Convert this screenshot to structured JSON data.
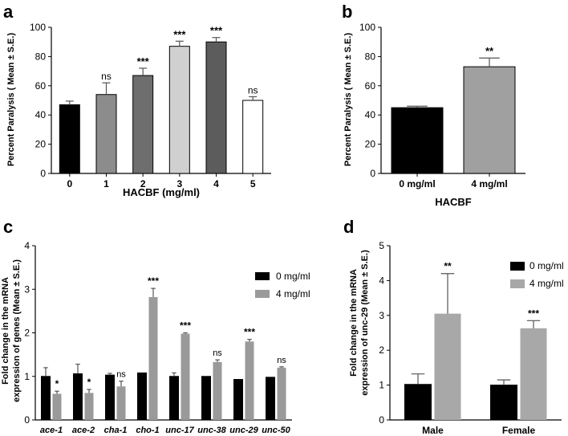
{
  "chart_data": [
    {
      "panel": "a",
      "type": "bar",
      "categories": [
        "0",
        "1",
        "2",
        "3",
        "4",
        "5"
      ],
      "values": [
        47,
        54,
        67,
        87,
        90,
        50
      ],
      "errors": [
        2.5,
        8,
        5,
        3.5,
        3,
        2.5
      ],
      "significance": [
        "",
        "ns",
        "***",
        "***",
        "***",
        "ns"
      ],
      "colors": [
        "#000000",
        "#8c8c8c",
        "#6e6e6e",
        "#d0d0d0",
        "#5c5c5c",
        "#ffffff"
      ],
      "xlabel": "HACBF (mg/ml)",
      "ylabel": "Percent Paralysis ( Mean ± S.E.)",
      "ylim": [
        0,
        100
      ],
      "yticks": [
        "0",
        "20",
        "40",
        "60",
        "80",
        "100"
      ]
    },
    {
      "panel": "b",
      "type": "bar",
      "categories": [
        "0 mg/ml",
        "4 mg/ml"
      ],
      "values": [
        45,
        73
      ],
      "errors": [
        1,
        6
      ],
      "significance": [
        "",
        "**"
      ],
      "colors": [
        "#000000",
        "#a0a0a0"
      ],
      "xlabel": "HACBF",
      "ylabel": "Percent Paralysis ( Mean ± S.E.)",
      "ylim": [
        0,
        100
      ],
      "yticks": [
        "0",
        "20",
        "40",
        "60",
        "80",
        "100"
      ]
    },
    {
      "panel": "c",
      "type": "bar",
      "categories": [
        "ace-1",
        "ace-2",
        "cha-1",
        "cho-1",
        "unc-17",
        "unc-38",
        "unc-29",
        "unc-50"
      ],
      "series": [
        {
          "name": "0 mg/ml",
          "color": "#000000",
          "values": [
            1.0,
            1.06,
            1.03,
            1.08,
            1.0,
            1.0,
            0.93,
            0.98
          ],
          "errors": [
            0.2,
            0.22,
            0.04,
            0,
            0.08,
            0,
            0,
            0
          ]
        },
        {
          "name": "4 mg/ml",
          "color": "#9a9a9a",
          "values": [
            0.6,
            0.62,
            0.77,
            2.82,
            1.98,
            1.33,
            1.8,
            1.2
          ],
          "errors": [
            0.06,
            0.08,
            0.12,
            0.2,
            0.02,
            0.05,
            0.05,
            0.02
          ]
        }
      ],
      "significance": [
        "*",
        "*",
        "ns",
        "***",
        "***",
        "ns",
        "***",
        "ns"
      ],
      "xlabel": "",
      "ylabel_lines": [
        "Fold change in the mRNA",
        "expression of genes (Mean ± S.E.)"
      ],
      "ylim": [
        0,
        4
      ],
      "yticks": [
        "0",
        "1",
        "2",
        "3",
        "4"
      ],
      "legend": "right"
    },
    {
      "panel": "d",
      "type": "bar",
      "categories": [
        "Male",
        "Female"
      ],
      "series": [
        {
          "name": "0 mg/ml",
          "color": "#000000",
          "values": [
            1.02,
            1.0
          ],
          "errors": [
            0.3,
            0.15
          ]
        },
        {
          "name": "4 mg/ml",
          "color": "#a8a8a8",
          "values": [
            3.05,
            2.63
          ],
          "errors": [
            1.15,
            0.22
          ]
        }
      ],
      "significance": [
        "**",
        "***"
      ],
      "xlabel": "",
      "ylabel_lines": [
        "Fold change in the mRNA",
        "expression of unc-29 (Mean ± S.E.)"
      ],
      "ylim": [
        0,
        5
      ],
      "yticks": [
        "0",
        "1",
        "2",
        "3",
        "4",
        "5"
      ],
      "legend": "top-right"
    }
  ]
}
